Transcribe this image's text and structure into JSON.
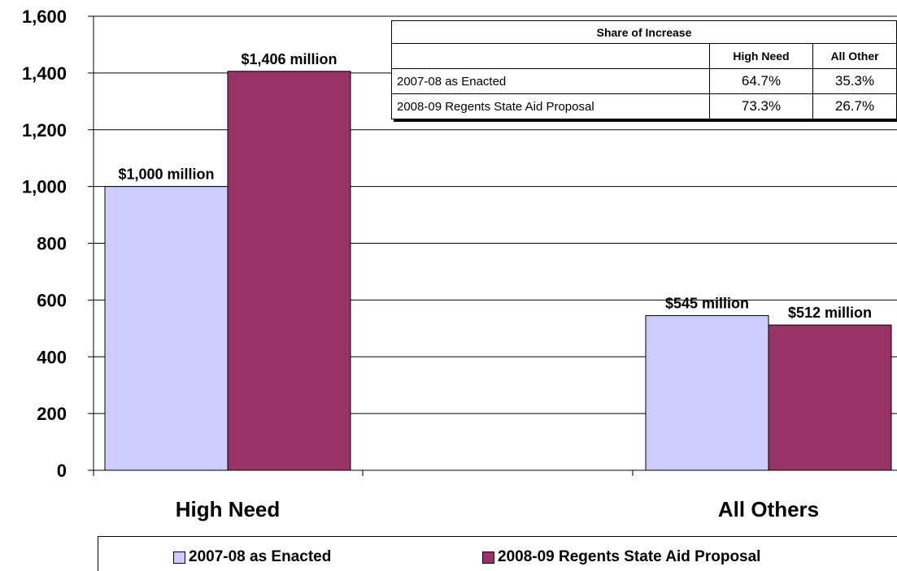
{
  "chart_data": {
    "type": "bar",
    "categories": [
      "High Need",
      "All Others"
    ],
    "series": [
      {
        "name": "2007-08 as Enacted",
        "color": "#ccccff",
        "values": [
          1000,
          545
        ],
        "labels": [
          "$1,000 million",
          "$545 million"
        ]
      },
      {
        "name": "2008-09 Regents State Aid Proposal",
        "color": "#993366",
        "values": [
          1406,
          512
        ],
        "labels": [
          "$1,406 million",
          "$512 million"
        ]
      }
    ],
    "y_ticks": [
      "0",
      "200",
      "400",
      "600",
      "800",
      "1,000",
      "1,200",
      "1,400",
      "1,600"
    ],
    "ylim": [
      0,
      1600
    ],
    "grid": true,
    "legend_position": "bottom"
  },
  "share_table": {
    "title": "Share of Increase",
    "headers": [
      "",
      "High Need",
      "All Other"
    ],
    "rows": [
      {
        "label": "2007-08 as Enacted",
        "high_need": "64.7%",
        "all_other": "35.3%"
      },
      {
        "label": "2008-09 Regents State Aid Proposal",
        "high_need": "73.3%",
        "all_other": "26.7%"
      }
    ]
  }
}
